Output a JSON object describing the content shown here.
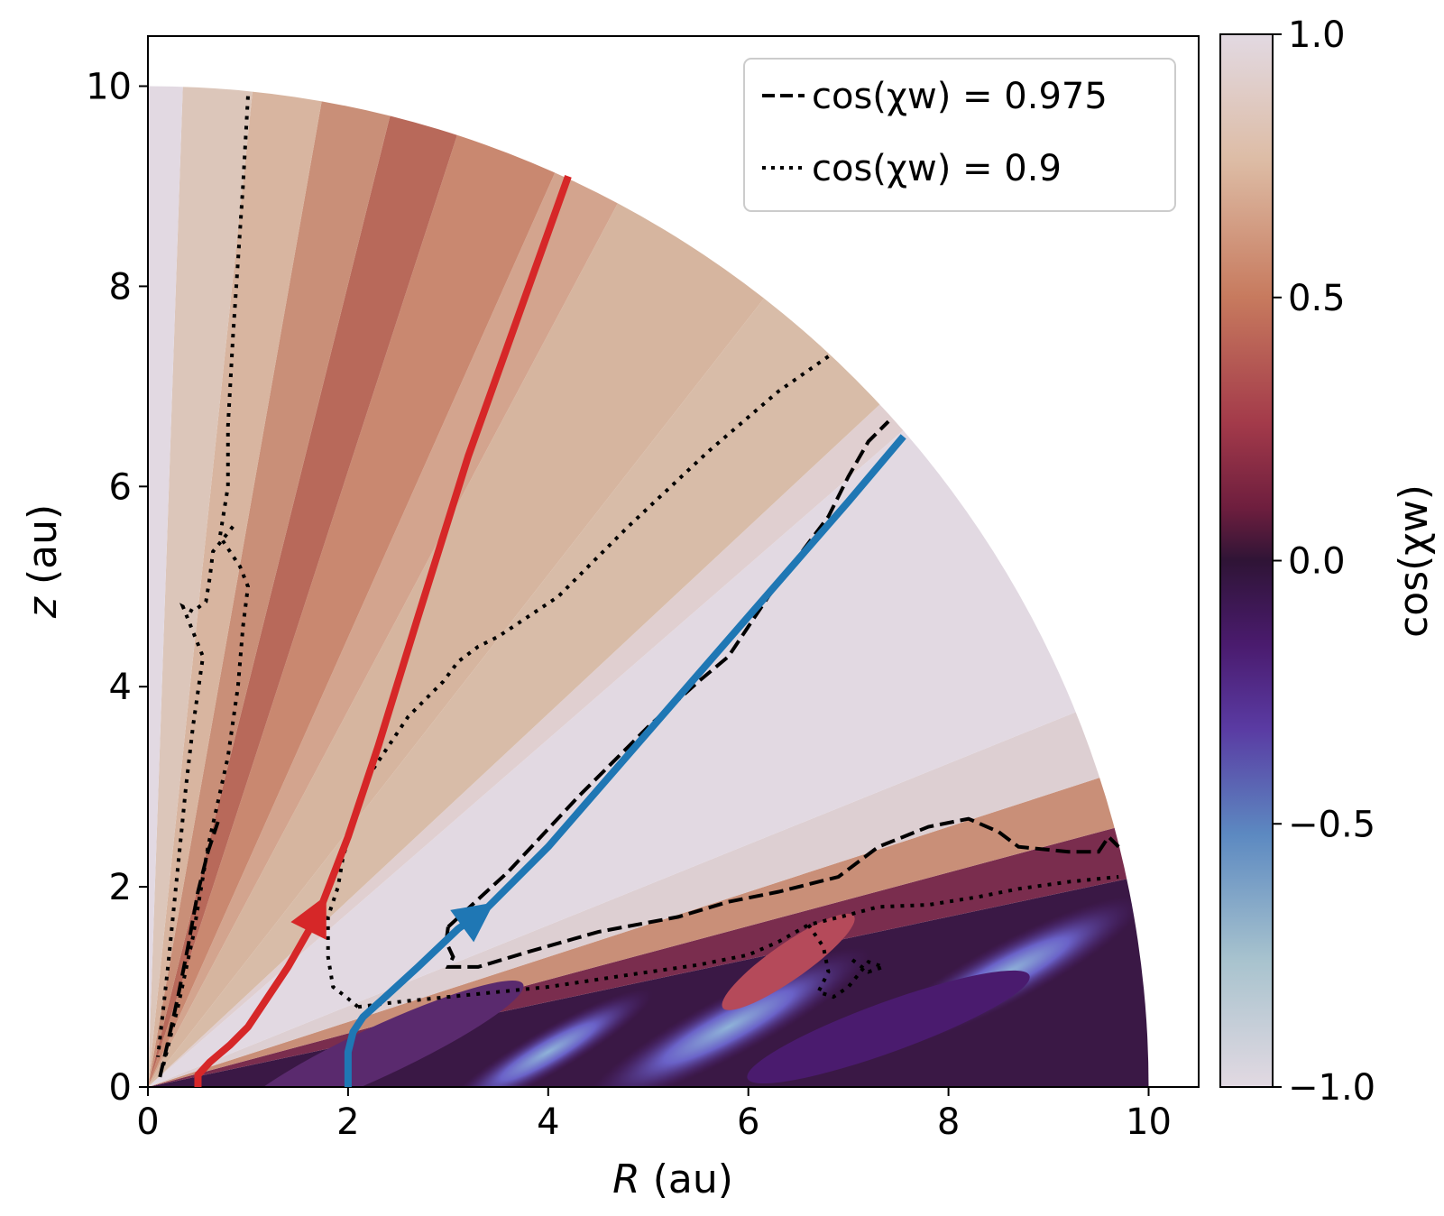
{
  "chart_data": {
    "type": "heatmap",
    "title": "",
    "xlabel_italic": "R",
    "xlabel_unit": " (au)",
    "ylabel_italic": "z",
    "ylabel_unit": " (au)",
    "xlim": [
      0,
      10.5
    ],
    "ylim": [
      0,
      10.5
    ],
    "x_ticks": [
      0,
      2,
      4,
      6,
      8,
      10
    ],
    "y_ticks": [
      0,
      2,
      4,
      6,
      8,
      10
    ],
    "x_tick_labels": [
      "0",
      "2",
      "4",
      "6",
      "8",
      "10"
    ],
    "y_tick_labels": [
      "0",
      "2",
      "4",
      "6",
      "8",
      "10"
    ],
    "domain_radius_au": 10,
    "colorbar": {
      "label": "cos(χw)",
      "range": [
        -1.0,
        1.0
      ],
      "ticks": [
        1.0,
        0.5,
        0.0,
        -0.5,
        -1.0
      ],
      "tick_labels": [
        "1.0",
        "0.5",
        "0.0",
        "−0.5",
        "−1.0"
      ],
      "colors": [
        "#e2d9e2",
        "#a8c3ce",
        "#5c89c1",
        "#5a3ba3",
        "#4a1b6e",
        "#2f1436",
        "#6e1e3e",
        "#a33a4a",
        "#c77a5e",
        "#ddbca5",
        "#e2d9e2"
      ]
    },
    "legend": {
      "placement": "top-right",
      "entries": [
        {
          "label": "cos(χw) = 0.975",
          "style": "dashed"
        },
        {
          "label": "cos(χw) = 0.9",
          "style": "dotted"
        }
      ]
    },
    "series": [
      {
        "name": "streamline-red",
        "color": "#d62728",
        "arrow_at": [
          1.75,
          1.85
        ],
        "points": [
          [
            0.5,
            0
          ],
          [
            0.5,
            0.12
          ],
          [
            0.62,
            0.25
          ],
          [
            0.82,
            0.42
          ],
          [
            1.0,
            0.6
          ],
          [
            1.2,
            0.9
          ],
          [
            1.4,
            1.2
          ],
          [
            1.6,
            1.55
          ],
          [
            1.75,
            1.85
          ],
          [
            2.0,
            2.5
          ],
          [
            2.3,
            3.4
          ],
          [
            2.7,
            4.7
          ],
          [
            3.2,
            6.3
          ],
          [
            3.7,
            7.7
          ],
          [
            4.2,
            9.1
          ]
        ]
      },
      {
        "name": "streamline-blue",
        "color": "#1f77b4",
        "arrow_at": [
          3.4,
          1.8
        ],
        "points": [
          [
            2.0,
            0
          ],
          [
            2.0,
            0.35
          ],
          [
            2.05,
            0.55
          ],
          [
            2.15,
            0.7
          ],
          [
            2.35,
            0.88
          ],
          [
            2.7,
            1.2
          ],
          [
            3.1,
            1.58
          ],
          [
            3.4,
            1.8
          ],
          [
            4.0,
            2.4
          ],
          [
            5.0,
            3.55
          ],
          [
            6.0,
            4.7
          ],
          [
            7.0,
            5.85
          ],
          [
            7.55,
            6.5
          ]
        ]
      },
      {
        "name": "contour-0.975-upper",
        "style": "dashed",
        "points": [
          [
            3.0,
            1.6
          ],
          [
            3.6,
            2.15
          ],
          [
            4.3,
            2.9
          ],
          [
            5.0,
            3.6
          ],
          [
            5.5,
            4.05
          ],
          [
            5.8,
            4.3
          ],
          [
            6.0,
            4.6
          ],
          [
            6.2,
            4.9
          ],
          [
            6.5,
            5.3
          ],
          [
            6.8,
            5.7
          ],
          [
            7.0,
            6.1
          ],
          [
            7.2,
            6.45
          ],
          [
            7.4,
            6.65
          ]
        ]
      },
      {
        "name": "contour-0.975-lower",
        "style": "dashed",
        "points": [
          [
            3.0,
            1.6
          ],
          [
            2.98,
            1.45
          ],
          [
            3.05,
            1.3
          ],
          [
            3.0,
            1.2
          ],
          [
            3.3,
            1.2
          ],
          [
            3.8,
            1.35
          ],
          [
            4.5,
            1.55
          ],
          [
            5.3,
            1.7
          ],
          [
            5.8,
            1.85
          ],
          [
            6.3,
            1.95
          ],
          [
            6.9,
            2.1
          ],
          [
            7.3,
            2.4
          ],
          [
            7.8,
            2.6
          ],
          [
            8.2,
            2.68
          ],
          [
            8.5,
            2.55
          ],
          [
            8.7,
            2.4
          ],
          [
            9.2,
            2.35
          ],
          [
            9.5,
            2.35
          ],
          [
            9.6,
            2.5
          ],
          [
            9.7,
            2.4
          ]
        ]
      },
      {
        "name": "contour-0.975-polar",
        "style": "dashed",
        "points": [
          [
            0.12,
            0.1
          ],
          [
            0.2,
            0.45
          ],
          [
            0.3,
            0.9
          ],
          [
            0.4,
            1.4
          ],
          [
            0.5,
            1.95
          ],
          [
            0.6,
            2.35
          ],
          [
            0.7,
            2.65
          ]
        ]
      },
      {
        "name": "contour-0.9-wedge",
        "style": "dotted",
        "points": [
          [
            6.8,
            7.3
          ],
          [
            6.3,
            6.95
          ],
          [
            5.6,
            6.35
          ],
          [
            4.8,
            5.6
          ],
          [
            4.1,
            4.9
          ],
          [
            3.5,
            4.5
          ],
          [
            3.3,
            4.4
          ],
          [
            3.1,
            4.25
          ],
          [
            2.95,
            4.05
          ],
          [
            2.6,
            3.7
          ],
          [
            2.2,
            3.1
          ],
          [
            1.95,
            2.3
          ],
          [
            1.9,
            2.0
          ],
          [
            1.8,
            1.7
          ],
          [
            1.8,
            1.3
          ],
          [
            1.85,
            1.0
          ],
          [
            1.98,
            0.9
          ],
          [
            2.1,
            0.8
          ]
        ]
      },
      {
        "name": "contour-0.9-lower",
        "style": "dotted",
        "points": [
          [
            2.1,
            0.8
          ],
          [
            2.5,
            0.85
          ],
          [
            3.2,
            0.92
          ],
          [
            4.0,
            1.0
          ],
          [
            4.8,
            1.12
          ],
          [
            5.5,
            1.22
          ],
          [
            6.0,
            1.32
          ],
          [
            6.3,
            1.45
          ],
          [
            6.6,
            1.62
          ],
          [
            7.0,
            1.72
          ],
          [
            7.3,
            1.8
          ],
          [
            7.8,
            1.82
          ],
          [
            8.3,
            1.9
          ],
          [
            8.7,
            1.98
          ],
          [
            9.2,
            2.05
          ],
          [
            9.7,
            2.1
          ]
        ]
      },
      {
        "name": "contour-0.9-inner-lobe",
        "style": "dotted",
        "points": [
          [
            6.6,
            1.62
          ],
          [
            6.75,
            1.4
          ],
          [
            6.8,
            1.15
          ],
          [
            6.7,
            0.95
          ],
          [
            6.85,
            0.9
          ],
          [
            7.0,
            1.0
          ],
          [
            7.2,
            1.25
          ],
          [
            7.35,
            1.2
          ],
          [
            7.2,
            1.15
          ],
          [
            7.0,
            1.3
          ]
        ]
      },
      {
        "name": "contour-0.9-polar-outer",
        "style": "dotted",
        "points": [
          [
            1.0,
            9.9
          ],
          [
            0.95,
            9.0
          ],
          [
            0.85,
            7.5
          ],
          [
            0.8,
            6.6
          ],
          [
            0.8,
            6.0
          ],
          [
            0.72,
            5.5
          ],
          [
            0.92,
            5.2
          ],
          [
            1.0,
            5.0
          ],
          [
            0.95,
            4.6
          ],
          [
            0.9,
            4.0
          ],
          [
            0.8,
            3.3
          ],
          [
            0.6,
            2.4
          ],
          [
            0.45,
            1.5
          ],
          [
            0.3,
            0.8
          ],
          [
            0.15,
            0.2
          ]
        ]
      },
      {
        "name": "contour-0.9-polar-inner",
        "style": "dotted",
        "points": [
          [
            0.85,
            5.6
          ],
          [
            0.65,
            5.35
          ],
          [
            0.62,
            5.1
          ],
          [
            0.58,
            4.85
          ],
          [
            0.45,
            4.75
          ],
          [
            0.35,
            4.8
          ],
          [
            0.55,
            4.3
          ],
          [
            0.45,
            3.6
          ],
          [
            0.38,
            3.0
          ],
          [
            0.3,
            2.2
          ],
          [
            0.2,
            1.2
          ],
          [
            0.1,
            0.3
          ]
        ]
      }
    ]
  }
}
